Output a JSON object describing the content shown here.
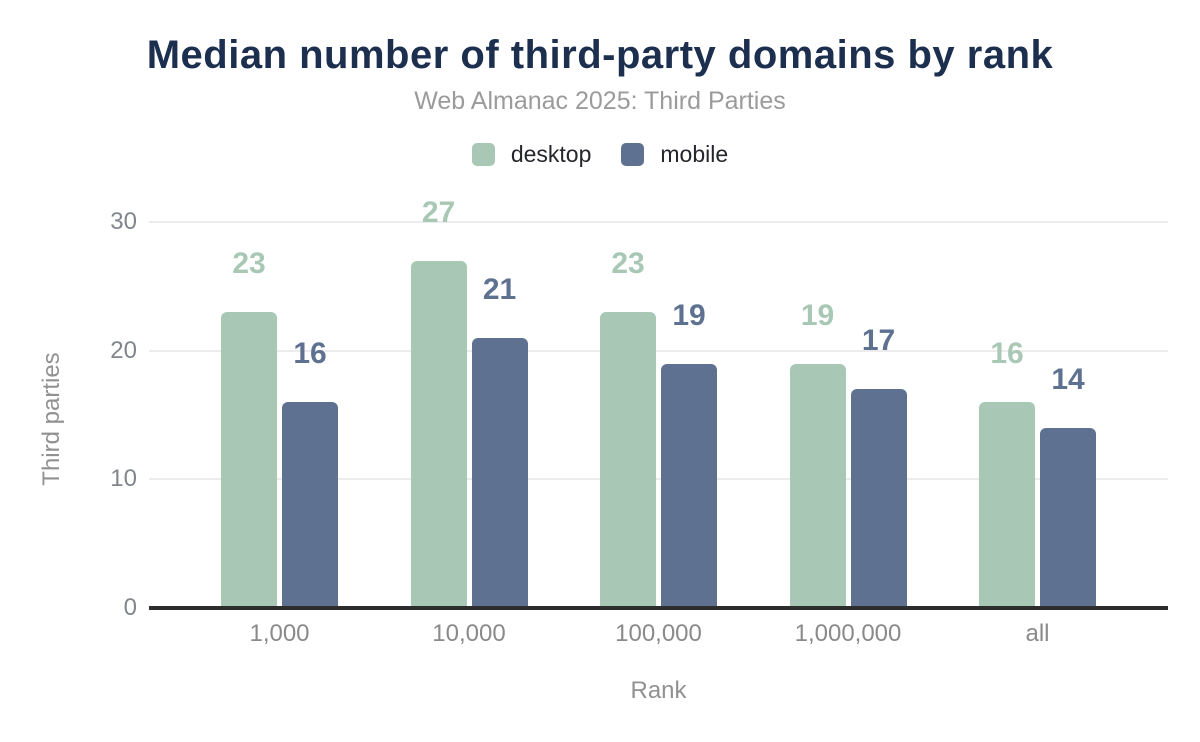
{
  "chart_data": {
    "type": "bar",
    "title": "Median number of third-party domains by rank",
    "subtitle": "Web Almanac 2025: Third Parties",
    "categories": [
      "1,000",
      "10,000",
      "100,000",
      "1,000,000",
      "all"
    ],
    "series": [
      {
        "name": "desktop",
        "color": "#a8c8b5",
        "values": [
          23,
          27,
          23,
          19,
          16
        ]
      },
      {
        "name": "mobile",
        "color": "#5e7190",
        "values": [
          16,
          21,
          19,
          17,
          14
        ]
      }
    ],
    "xlabel": "Rank",
    "ylabel": "Third parties",
    "ylim": [
      0,
      30
    ],
    "y_ticks": [
      0,
      10,
      20,
      30
    ],
    "grid": true,
    "legend_position": "top",
    "data_labels": true
  },
  "colors": {
    "background": "#ffffff",
    "title": "#1d2f4e",
    "subtitle": "#9b9b9b",
    "desktop": "#a8c8b5",
    "mobile": "#5e7190",
    "tick_labels": "#82868c",
    "axis_titles": "#919191",
    "legend_text": "#24262b",
    "gridline": "#ececec",
    "baseline": "#2d2d2d"
  }
}
